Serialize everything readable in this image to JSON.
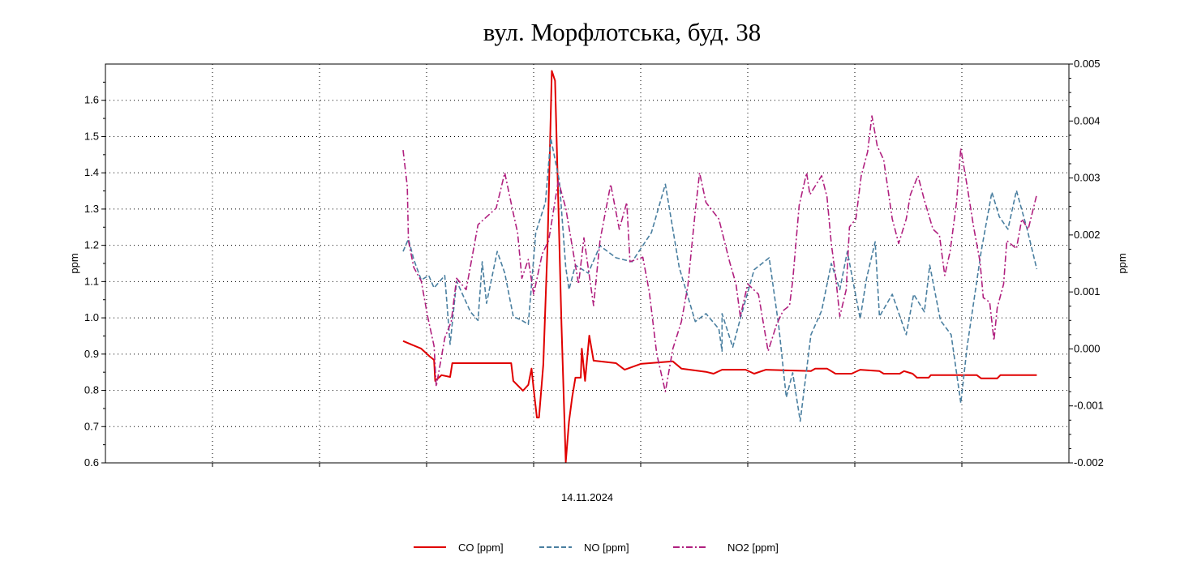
{
  "chart_data": {
    "type": "line",
    "title": "вул. Морфлотська, буд. 38",
    "xlabel": "14.11.2024",
    "ylabel_left": "ppm",
    "ylabel_right": "ppm",
    "xlim": [
      0,
      9
    ],
    "x_gridlines": [
      1,
      2,
      3,
      4,
      5,
      6,
      7,
      8
    ],
    "ylim_left": [
      0.6,
      1.7
    ],
    "yticks_left": [
      "0.6",
      "0.7",
      "0.8",
      "0.9",
      "1.0",
      "1.1",
      "1.2",
      "1.3",
      "1.4",
      "1.5",
      "1.6"
    ],
    "ylim_right": [
      -0.002,
      0.005
    ],
    "yticks_right": [
      "-0.002",
      "-0.001",
      "0.000",
      "0.001",
      "0.002",
      "0.003",
      "0.004",
      "0.005"
    ],
    "grid": true,
    "legend_placement": "bottom",
    "series": [
      {
        "name": "CO [ppm]",
        "axis": "left",
        "color": "#e00000",
        "style": "solid",
        "points": [
          [
            2.78,
            0.936
          ],
          [
            2.95,
            0.915
          ],
          [
            3.03,
            0.893
          ],
          [
            3.07,
            0.884
          ],
          [
            3.08,
            0.826
          ],
          [
            3.14,
            0.842
          ],
          [
            3.22,
            0.837
          ],
          [
            3.24,
            0.875
          ],
          [
            3.79,
            0.875
          ],
          [
            3.81,
            0.826
          ],
          [
            3.9,
            0.799
          ],
          [
            3.95,
            0.815
          ],
          [
            3.98,
            0.86
          ],
          [
            4.0,
            0.804
          ],
          [
            4.03,
            0.725
          ],
          [
            4.05,
            0.725
          ],
          [
            4.09,
            0.871
          ],
          [
            4.13,
            1.206
          ],
          [
            4.17,
            1.681
          ],
          [
            4.2,
            1.654
          ],
          [
            4.23,
            1.318
          ],
          [
            4.26,
            0.983
          ],
          [
            4.3,
            0.602
          ],
          [
            4.33,
            0.714
          ],
          [
            4.36,
            0.781
          ],
          [
            4.39,
            0.835
          ],
          [
            4.44,
            0.835
          ],
          [
            4.45,
            0.915
          ],
          [
            4.48,
            0.826
          ],
          [
            4.52,
            0.951
          ],
          [
            4.56,
            0.882
          ],
          [
            4.77,
            0.875
          ],
          [
            4.85,
            0.857
          ],
          [
            5.0,
            0.873
          ],
          [
            5.3,
            0.88
          ],
          [
            5.38,
            0.86
          ],
          [
            5.61,
            0.851
          ],
          [
            5.68,
            0.846
          ],
          [
            5.76,
            0.857
          ],
          [
            5.98,
            0.857
          ],
          [
            6.06,
            0.846
          ],
          [
            6.17,
            0.857
          ],
          [
            6.59,
            0.853
          ],
          [
            6.63,
            0.86
          ],
          [
            6.74,
            0.86
          ],
          [
            6.82,
            0.846
          ],
          [
            6.97,
            0.846
          ],
          [
            7.05,
            0.857
          ],
          [
            7.23,
            0.853
          ],
          [
            7.27,
            0.846
          ],
          [
            7.42,
            0.846
          ],
          [
            7.46,
            0.853
          ],
          [
            7.54,
            0.846
          ],
          [
            7.58,
            0.835
          ],
          [
            7.69,
            0.835
          ],
          [
            7.71,
            0.842
          ],
          [
            8.14,
            0.842
          ],
          [
            8.18,
            0.833
          ],
          [
            8.33,
            0.833
          ],
          [
            8.36,
            0.842
          ],
          [
            8.7,
            0.842
          ]
        ]
      },
      {
        "name": "NO [ppm]",
        "axis": "right",
        "color": "#4a7fa0",
        "style": "dashed",
        "points": [
          [
            2.78,
            0.00171
          ],
          [
            2.83,
            0.00193
          ],
          [
            2.88,
            0.00157
          ],
          [
            2.95,
            0.00121
          ],
          [
            3.02,
            0.00129
          ],
          [
            3.07,
            0.00107
          ],
          [
            3.17,
            0.00129
          ],
          [
            3.22,
            8e-05
          ],
          [
            3.28,
            0.00119
          ],
          [
            3.41,
            0.00065
          ],
          [
            3.48,
            0.0005
          ],
          [
            3.52,
            0.00153
          ],
          [
            3.56,
            0.0008
          ],
          [
            3.66,
            0.00171
          ],
          [
            3.73,
            0.00133
          ],
          [
            3.81,
            0.00057
          ],
          [
            3.89,
            0.0005
          ],
          [
            3.95,
            0.00043
          ],
          [
            4.02,
            0.00204
          ],
          [
            4.11,
            0.00257
          ],
          [
            4.16,
            0.0037
          ],
          [
            4.24,
            0.00295
          ],
          [
            4.3,
            0.00143
          ],
          [
            4.33,
            0.00104
          ],
          [
            4.39,
            0.00147
          ],
          [
            4.51,
            0.00133
          ],
          [
            4.62,
            0.00181
          ],
          [
            4.77,
            0.0016
          ],
          [
            4.92,
            0.00153
          ],
          [
            5.1,
            0.00204
          ],
          [
            5.23,
            0.00289
          ],
          [
            5.36,
            0.00143
          ],
          [
            5.51,
            0.00048
          ],
          [
            5.61,
            0.00062
          ],
          [
            5.73,
            0.00035
          ],
          [
            5.76,
            -4e-05
          ],
          [
            5.76,
            0.00062
          ],
          [
            5.86,
            3e-05
          ],
          [
            5.93,
            0.00053
          ],
          [
            6.06,
            0.00139
          ],
          [
            6.2,
            0.0016
          ],
          [
            6.29,
            0.00039
          ],
          [
            6.36,
            -0.00085
          ],
          [
            6.42,
            -0.00042
          ],
          [
            6.49,
            -0.00127
          ],
          [
            6.59,
            0.00025
          ],
          [
            6.69,
            0.00067
          ],
          [
            6.78,
            0.0015
          ],
          [
            6.86,
            0.00104
          ],
          [
            6.93,
            0.00171
          ],
          [
            7.05,
            0.00053
          ],
          [
            7.11,
            0.00124
          ],
          [
            7.19,
            0.00188
          ],
          [
            7.23,
            0.00057
          ],
          [
            7.35,
            0.00096
          ],
          [
            7.48,
            0.00025
          ],
          [
            7.55,
            0.00096
          ],
          [
            7.65,
            0.00065
          ],
          [
            7.7,
            0.00147
          ],
          [
            7.8,
            0.0005
          ],
          [
            7.9,
            0.00025
          ],
          [
            7.99,
            -0.00095
          ],
          [
            8.05,
            5e-05
          ],
          [
            8.18,
            0.00171
          ],
          [
            8.28,
            0.00275
          ],
          [
            8.35,
            0.00232
          ],
          [
            8.43,
            0.0021
          ],
          [
            8.51,
            0.00278
          ],
          [
            8.61,
            0.0021
          ],
          [
            8.7,
            0.0014
          ]
        ]
      },
      {
        "name": "NO2 [ppm]",
        "axis": "right",
        "color": "#b0207f",
        "style": "dashdot",
        "points": [
          [
            2.78,
            0.00349
          ],
          [
            2.82,
            0.00285
          ],
          [
            2.83,
            0.0019
          ],
          [
            2.88,
            0.00143
          ],
          [
            2.95,
            0.00119
          ],
          [
            3.01,
            0.00057
          ],
          [
            3.07,
            5e-05
          ],
          [
            3.09,
            -0.00066
          ],
          [
            3.17,
            0.00019
          ],
          [
            3.23,
            0.00048
          ],
          [
            3.28,
            0.00124
          ],
          [
            3.37,
            0.00104
          ],
          [
            3.48,
            0.00218
          ],
          [
            3.65,
            0.00247
          ],
          [
            3.73,
            0.00309
          ],
          [
            3.81,
            0.00238
          ],
          [
            3.85,
            0.00204
          ],
          [
            3.89,
            0.00124
          ],
          [
            3.95,
            0.00157
          ],
          [
            4.0,
            0.00096
          ],
          [
            4.08,
            0.00167
          ],
          [
            4.14,
            0.0019
          ],
          [
            4.23,
            0.00295
          ],
          [
            4.3,
            0.00247
          ],
          [
            4.42,
            0.00114
          ],
          [
            4.47,
            0.00195
          ],
          [
            4.56,
            0.00076
          ],
          [
            4.62,
            0.0019
          ],
          [
            4.72,
            0.00289
          ],
          [
            4.8,
            0.0021
          ],
          [
            4.87,
            0.00257
          ],
          [
            4.9,
            0.00153
          ],
          [
            5.02,
            0.00161
          ],
          [
            5.08,
            0.001
          ],
          [
            5.15,
            -9e-05
          ],
          [
            5.23,
            -0.00075
          ],
          [
            5.3,
            0.0
          ],
          [
            5.38,
            0.00048
          ],
          [
            5.44,
            0.0011
          ],
          [
            5.51,
            0.00242
          ],
          [
            5.55,
            0.00309
          ],
          [
            5.61,
            0.00257
          ],
          [
            5.73,
            0.00228
          ],
          [
            5.83,
            0.00153
          ],
          [
            5.89,
            0.00114
          ],
          [
            5.93,
            0.00057
          ],
          [
            6.0,
            0.00114
          ],
          [
            6.1,
            0.00096
          ],
          [
            6.19,
            -4e-05
          ],
          [
            6.27,
            0.00043
          ],
          [
            6.33,
            0.00067
          ],
          [
            6.39,
            0.00076
          ],
          [
            6.42,
            0.00119
          ],
          [
            6.48,
            0.00252
          ],
          [
            6.55,
            0.00309
          ],
          [
            6.58,
            0.00271
          ],
          [
            6.69,
            0.00304
          ],
          [
            6.74,
            0.00267
          ],
          [
            6.78,
            0.00185
          ],
          [
            6.82,
            0.00129
          ],
          [
            6.86,
            0.00057
          ],
          [
            6.92,
            0.00104
          ],
          [
            6.95,
            0.00214
          ],
          [
            7.01,
            0.00228
          ],
          [
            7.06,
            0.00304
          ],
          [
            7.12,
            0.00346
          ],
          [
            7.16,
            0.00409
          ],
          [
            7.21,
            0.00356
          ],
          [
            7.27,
            0.00332
          ],
          [
            7.35,
            0.00228
          ],
          [
            7.41,
            0.00185
          ],
          [
            7.48,
            0.00228
          ],
          [
            7.52,
            0.00271
          ],
          [
            7.59,
            0.00304
          ],
          [
            7.65,
            0.00261
          ],
          [
            7.73,
            0.0021
          ],
          [
            7.79,
            0.002
          ],
          [
            7.84,
            0.00129
          ],
          [
            7.89,
            0.00171
          ],
          [
            7.95,
            0.00257
          ],
          [
            7.99,
            0.00352
          ],
          [
            8.05,
            0.00285
          ],
          [
            8.11,
            0.00214
          ],
          [
            8.17,
            0.00153
          ],
          [
            8.2,
            0.0009
          ],
          [
            8.26,
            0.00082
          ],
          [
            8.3,
            0.00015
          ],
          [
            8.33,
            0.00072
          ],
          [
            8.39,
            0.00114
          ],
          [
            8.42,
            0.0019
          ],
          [
            8.51,
            0.00176
          ],
          [
            8.56,
            0.00228
          ],
          [
            8.62,
            0.0021
          ],
          [
            8.7,
            0.00271
          ]
        ]
      }
    ]
  }
}
